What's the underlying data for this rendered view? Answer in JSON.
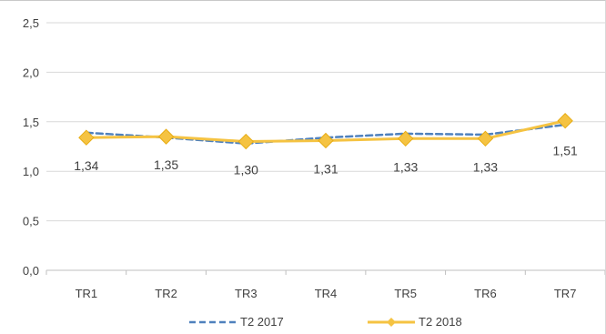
{
  "chart_data": {
    "type": "line",
    "categories": [
      "TR1",
      "TR2",
      "TR3",
      "TR4",
      "TR5",
      "TR6",
      "TR7"
    ],
    "series": [
      {
        "name": "T2 2017",
        "values": [
          1.39,
          1.34,
          1.28,
          1.34,
          1.38,
          1.37,
          1.47
        ],
        "color": "#4f81bd",
        "style": "dashed",
        "markers": false
      },
      {
        "name": "T2 2018",
        "values": [
          1.34,
          1.35,
          1.3,
          1.31,
          1.33,
          1.33,
          1.51
        ],
        "color": "#f5c342",
        "style": "solid",
        "markers": true,
        "data_labels": [
          "1,34",
          "1,35",
          "1,30",
          "1,31",
          "1,33",
          "1,33",
          "1,51"
        ]
      }
    ],
    "y_ticks": [
      "0,0",
      "0,5",
      "1,0",
      "1,5",
      "2,0",
      "2,5"
    ],
    "ylim": [
      0,
      2.5
    ],
    "grid": true,
    "legend_position": "bottom",
    "title": "",
    "xlabel": "",
    "ylabel": ""
  }
}
